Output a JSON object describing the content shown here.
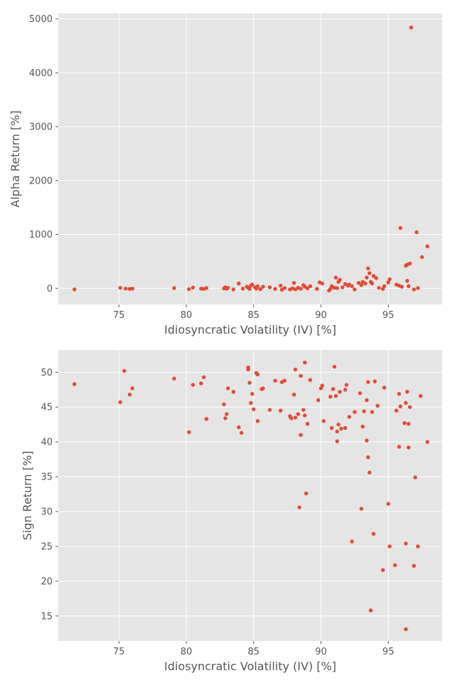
{
  "chart_data": [
    {
      "type": "scatter",
      "xlabel": "Idiosyncratic Volatility (IV) [%]",
      "ylabel": "Alpha Return [%]",
      "xlim": [
        70.5,
        99
      ],
      "ylim": [
        -300,
        5100
      ],
      "xticks": [
        75,
        80,
        85,
        90,
        95
      ],
      "yticks": [
        0,
        1000,
        2000,
        3000,
        4000,
        5000
      ],
      "grid": true,
      "marker_color": "#E24A33",
      "background": "#E5E5E5",
      "points": [
        [
          71.7,
          -20
        ],
        [
          75.1,
          10
        ],
        [
          75.5,
          -5
        ],
        [
          75.8,
          -10
        ],
        [
          76.0,
          -5
        ],
        [
          79.1,
          5
        ],
        [
          80.2,
          -15
        ],
        [
          80.5,
          15
        ],
        [
          81.1,
          -5
        ],
        [
          81.3,
          -10
        ],
        [
          81.5,
          5
        ],
        [
          82.8,
          0
        ],
        [
          82.9,
          20
        ],
        [
          83.0,
          -5
        ],
        [
          83.1,
          10
        ],
        [
          83.5,
          -20
        ],
        [
          83.9,
          90
        ],
        [
          84.2,
          -5
        ],
        [
          84.5,
          30
        ],
        [
          84.6,
          10
        ],
        [
          84.7,
          -10
        ],
        [
          84.8,
          50
        ],
        [
          84.9,
          70
        ],
        [
          85.1,
          20
        ],
        [
          85.2,
          -5
        ],
        [
          85.3,
          40
        ],
        [
          85.5,
          -15
        ],
        [
          85.7,
          30
        ],
        [
          86.2,
          20
        ],
        [
          86.6,
          -10
        ],
        [
          87.0,
          50
        ],
        [
          87.1,
          -25
        ],
        [
          87.3,
          5
        ],
        [
          87.7,
          -20
        ],
        [
          87.9,
          0
        ],
        [
          88.0,
          100
        ],
        [
          88.1,
          -20
        ],
        [
          88.3,
          10
        ],
        [
          88.5,
          -5
        ],
        [
          88.7,
          60
        ],
        [
          88.8,
          30
        ],
        [
          89.0,
          0
        ],
        [
          89.2,
          40
        ],
        [
          89.7,
          -10
        ],
        [
          89.9,
          110
        ],
        [
          90.1,
          90
        ],
        [
          90.6,
          -40
        ],
        [
          90.7,
          -10
        ],
        [
          90.8,
          40
        ],
        [
          91.0,
          10
        ],
        [
          91.1,
          200
        ],
        [
          91.2,
          5
        ],
        [
          91.3,
          120
        ],
        [
          91.4,
          160
        ],
        [
          91.6,
          20
        ],
        [
          91.8,
          80
        ],
        [
          92.0,
          50
        ],
        [
          92.1,
          70
        ],
        [
          92.3,
          40
        ],
        [
          92.5,
          -20
        ],
        [
          92.8,
          100
        ],
        [
          93.0,
          60
        ],
        [
          93.1,
          120
        ],
        [
          93.3,
          90
        ],
        [
          93.4,
          200
        ],
        [
          93.5,
          370
        ],
        [
          93.6,
          280
        ],
        [
          93.7,
          120
        ],
        [
          93.8,
          90
        ],
        [
          93.9,
          230
        ],
        [
          94.1,
          190
        ],
        [
          94.3,
          10
        ],
        [
          94.6,
          -10
        ],
        [
          94.7,
          40
        ],
        [
          95.0,
          110
        ],
        [
          95.1,
          170
        ],
        [
          95.6,
          70
        ],
        [
          95.8,
          50
        ],
        [
          95.9,
          1120
        ],
        [
          96.0,
          30
        ],
        [
          96.3,
          420
        ],
        [
          96.4,
          440
        ],
        [
          96.4,
          140
        ],
        [
          96.5,
          40
        ],
        [
          96.6,
          460
        ],
        [
          96.7,
          4840
        ],
        [
          96.9,
          -20
        ],
        [
          97.1,
          1040
        ],
        [
          97.2,
          5
        ],
        [
          97.5,
          580
        ],
        [
          97.9,
          780
        ]
      ]
    },
    {
      "type": "scatter",
      "xlabel": "Idiosyncratic Volatility (IV) [%]",
      "ylabel": "Sign Return [%]",
      "xlim": [
        70.5,
        99
      ],
      "ylim": [
        11.4,
        53.2
      ],
      "xticks": [
        75,
        80,
        85,
        90,
        95
      ],
      "yticks": [
        15,
        20,
        25,
        30,
        35,
        40,
        45,
        50
      ],
      "grid": true,
      "marker_color": "#E24A33",
      "background": "#E5E5E5",
      "points": [
        [
          71.7,
          48.3
        ],
        [
          75.1,
          45.7
        ],
        [
          75.4,
          50.2
        ],
        [
          75.8,
          46.8
        ],
        [
          76.0,
          47.7
        ],
        [
          79.1,
          49.1
        ],
        [
          80.2,
          41.4
        ],
        [
          80.5,
          48.2
        ],
        [
          81.1,
          48.4
        ],
        [
          81.3,
          49.3
        ],
        [
          81.5,
          43.3
        ],
        [
          82.8,
          45.4
        ],
        [
          82.9,
          43.4
        ],
        [
          83.0,
          44.0
        ],
        [
          83.1,
          47.7
        ],
        [
          83.5,
          47.2
        ],
        [
          83.9,
          42.1
        ],
        [
          84.1,
          41.3
        ],
        [
          84.6,
          50.7
        ],
        [
          84.6,
          50.4
        ],
        [
          84.7,
          48.5
        ],
        [
          84.8,
          45.6
        ],
        [
          84.9,
          46.9
        ],
        [
          85.0,
          44.7
        ],
        [
          85.2,
          49.9
        ],
        [
          85.3,
          49.7
        ],
        [
          85.3,
          43.0
        ],
        [
          85.6,
          47.6
        ],
        [
          85.7,
          47.7
        ],
        [
          86.2,
          44.6
        ],
        [
          86.6,
          48.8
        ],
        [
          87.0,
          44.5
        ],
        [
          87.1,
          48.6
        ],
        [
          87.3,
          48.8
        ],
        [
          87.7,
          43.7
        ],
        [
          87.8,
          43.4
        ],
        [
          88.0,
          46.8
        ],
        [
          88.1,
          50.4
        ],
        [
          88.1,
          43.5
        ],
        [
          88.3,
          44.0
        ],
        [
          88.4,
          30.6
        ],
        [
          88.5,
          49.5
        ],
        [
          88.5,
          41.0
        ],
        [
          88.7,
          44.6
        ],
        [
          88.8,
          51.4
        ],
        [
          88.8,
          43.8
        ],
        [
          88.9,
          32.6
        ],
        [
          89.0,
          42.6
        ],
        [
          89.2,
          48.9
        ],
        [
          89.8,
          46.0
        ],
        [
          90.0,
          47.7
        ],
        [
          90.1,
          48.1
        ],
        [
          90.2,
          43.0
        ],
        [
          90.7,
          46.5
        ],
        [
          90.8,
          42.0
        ],
        [
          90.9,
          47.6
        ],
        [
          91.0,
          50.8
        ],
        [
          91.1,
          46.6
        ],
        [
          91.2,
          41.5
        ],
        [
          91.2,
          40.1
        ],
        [
          91.3,
          42.5
        ],
        [
          91.4,
          47.2
        ],
        [
          91.5,
          41.9
        ],
        [
          91.8,
          42.0
        ],
        [
          91.8,
          47.5
        ],
        [
          91.9,
          48.2
        ],
        [
          92.1,
          43.6
        ],
        [
          92.3,
          25.7
        ],
        [
          92.5,
          44.3
        ],
        [
          92.9,
          47.0
        ],
        [
          93.0,
          30.4
        ],
        [
          93.1,
          42.2
        ],
        [
          93.2,
          44.4
        ],
        [
          93.4,
          46.0
        ],
        [
          93.4,
          40.2
        ],
        [
          93.5,
          48.6
        ],
        [
          93.5,
          37.8
        ],
        [
          93.6,
          35.6
        ],
        [
          93.7,
          15.8
        ],
        [
          93.8,
          44.3
        ],
        [
          93.9,
          26.8
        ],
        [
          94.0,
          48.7
        ],
        [
          94.2,
          45.2
        ],
        [
          94.6,
          21.6
        ],
        [
          94.7,
          47.8
        ],
        [
          95.0,
          31.1
        ],
        [
          95.1,
          25.0
        ],
        [
          95.5,
          22.3
        ],
        [
          95.6,
          44.5
        ],
        [
          95.8,
          39.3
        ],
        [
          95.8,
          46.9
        ],
        [
          95.9,
          45.1
        ],
        [
          96.2,
          42.7
        ],
        [
          96.3,
          45.6
        ],
        [
          96.4,
          47.2
        ],
        [
          96.3,
          25.4
        ],
        [
          96.3,
          13.1
        ],
        [
          96.5,
          42.6
        ],
        [
          96.5,
          39.2
        ],
        [
          96.6,
          45.0
        ],
        [
          96.9,
          22.2
        ],
        [
          97.0,
          34.9
        ],
        [
          97.2,
          25.0
        ],
        [
          97.4,
          46.6
        ],
        [
          97.9,
          40.0
        ]
      ]
    }
  ]
}
